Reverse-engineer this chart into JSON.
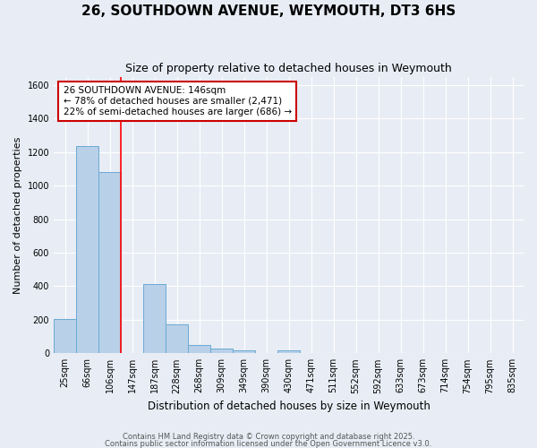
{
  "title": "26, SOUTHDOWN AVENUE, WEYMOUTH, DT3 6HS",
  "subtitle": "Size of property relative to detached houses in Weymouth",
  "xlabel": "Distribution of detached houses by size in Weymouth",
  "ylabel": "Number of detached properties",
  "categories": [
    "25sqm",
    "66sqm",
    "106sqm",
    "147sqm",
    "187sqm",
    "228sqm",
    "268sqm",
    "309sqm",
    "349sqm",
    "390sqm",
    "430sqm",
    "471sqm",
    "511sqm",
    "552sqm",
    "592sqm",
    "633sqm",
    "673sqm",
    "714sqm",
    "754sqm",
    "795sqm",
    "835sqm"
  ],
  "values": [
    205,
    1235,
    1080,
    0,
    415,
    170,
    50,
    30,
    20,
    0,
    20,
    0,
    0,
    0,
    0,
    0,
    0,
    0,
    0,
    0,
    0
  ],
  "bar_color": "#b8d0e8",
  "bar_edge_color": "#6aaad4",
  "annotation_text": "26 SOUTHDOWN AVENUE: 146sqm\n← 78% of detached houses are smaller (2,471)\n22% of semi-detached houses are larger (686) →",
  "annotation_box_color": "#ffffff",
  "annotation_box_edge_color": "#cc0000",
  "red_line_x": 2.5,
  "ylim": [
    0,
    1650
  ],
  "yticks": [
    0,
    200,
    400,
    600,
    800,
    1000,
    1200,
    1400,
    1600
  ],
  "background_color": "#e8edf5",
  "grid_color": "#ffffff",
  "footer_line1": "Contains HM Land Registry data © Crown copyright and database right 2025.",
  "footer_line2": "Contains public sector information licensed under the Open Government Licence v3.0.",
  "title_fontsize": 11,
  "subtitle_fontsize": 9,
  "xlabel_fontsize": 8.5,
  "ylabel_fontsize": 8,
  "tick_fontsize": 7,
  "annotation_fontsize": 7.5,
  "footer_fontsize": 6
}
